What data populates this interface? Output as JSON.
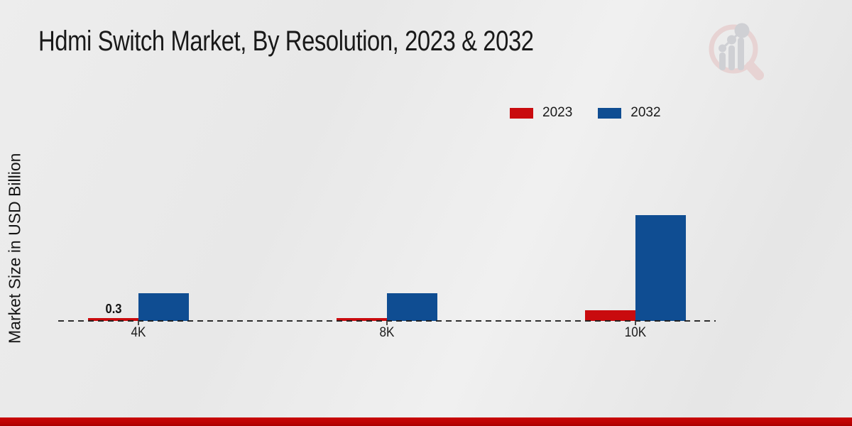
{
  "title": "Hdmi Switch Market, By Resolution, 2023 & 2032",
  "y_axis_label": "Market Size in USD Billion",
  "branding": {
    "logo_icon": "magnifier-growth-chart-logo"
  },
  "accent_bar_color": "#bb0202",
  "chart_data": {
    "type": "bar",
    "categories": [
      "4K",
      "8K",
      "10K"
    ],
    "series": [
      {
        "name": "2023",
        "color": "#c90b0e",
        "values": [
          0.3,
          0.28,
          1.1
        ]
      },
      {
        "name": "2032",
        "color": "#0f4d92",
        "values": [
          2.9,
          2.9,
          11.2
        ]
      }
    ],
    "bar_labels": [
      {
        "series": "2023",
        "category": "4K",
        "text": "0.3"
      }
    ],
    "title": "Hdmi Switch Market, By Resolution, 2023 & 2032",
    "xlabel": "",
    "ylabel": "Market Size in USD Billion",
    "ylim": [
      0,
      12
    ],
    "grid": false,
    "axis_line_style": "dashed",
    "legend_position": "top-right"
  }
}
